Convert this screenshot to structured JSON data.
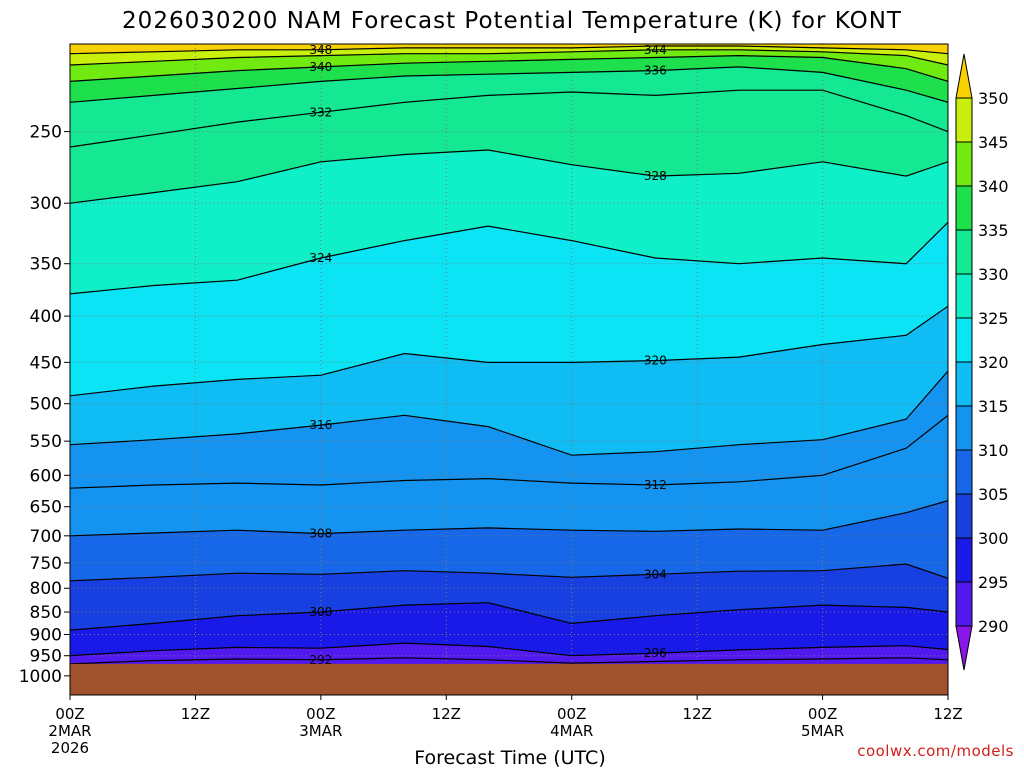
{
  "chart_data": {
    "type": "heatmap",
    "title": "2026030200 NAM Forecast Potential Temperature (K) for KONT",
    "xlabel": "Forecast Time (UTC)",
    "ylabel": "",
    "credit": "coolwx.com/models",
    "units": "K",
    "x_ticks": [
      {
        "hour": 0,
        "label": "00Z",
        "date": "2MAR",
        "year": "2026"
      },
      {
        "hour": 12,
        "label": "12Z",
        "date": "",
        "year": ""
      },
      {
        "hour": 24,
        "label": "00Z",
        "date": "3MAR",
        "year": ""
      },
      {
        "hour": 36,
        "label": "12Z",
        "date": "",
        "year": ""
      },
      {
        "hour": 48,
        "label": "00Z",
        "date": "4MAR",
        "year": ""
      },
      {
        "hour": 60,
        "label": "12Z",
        "date": "",
        "year": ""
      },
      {
        "hour": 72,
        "label": "00Z",
        "date": "5MAR",
        "year": ""
      },
      {
        "hour": 84,
        "label": "12Z",
        "date": "",
        "year": ""
      }
    ],
    "xlim": [
      0,
      84
    ],
    "y_ticks": [
      250,
      300,
      350,
      400,
      450,
      500,
      550,
      600,
      650,
      700,
      750,
      800,
      850,
      900,
      950,
      1000
    ],
    "ylim": [
      1050,
      200
    ],
    "y_scale": "log-pressure (hPa)",
    "grid": true,
    "colorbar": {
      "levels": [
        290,
        295,
        300,
        305,
        310,
        315,
        320,
        325,
        330,
        335,
        340,
        345,
        350
      ],
      "colors": [
        "#8a16e8",
        "#5218f0",
        "#1a1ae8",
        "#1840e0",
        "#1668e8",
        "#1494f0",
        "#10bcf4",
        "#0ae4f4",
        "#10f0c8",
        "#14e892",
        "#1ee04c",
        "#70ea10",
        "#c8f00c",
        "#f8f800",
        "#f8d200"
      ],
      "placement": "right"
    },
    "ground_pressure": 970,
    "isentropes": [
      {
        "theta": 292,
        "points": [
          [
            0,
            970
          ],
          [
            8,
            962
          ],
          [
            16,
            958
          ],
          [
            24,
            960
          ],
          [
            32,
            955
          ],
          [
            40,
            960
          ],
          [
            48,
            968
          ],
          [
            56,
            964
          ],
          [
            64,
            960
          ],
          [
            72,
            958
          ],
          [
            80,
            955
          ],
          [
            84,
            960
          ]
        ]
      },
      {
        "theta": 296,
        "points": [
          [
            0,
            950
          ],
          [
            8,
            938
          ],
          [
            16,
            930
          ],
          [
            24,
            932
          ],
          [
            32,
            920
          ],
          [
            40,
            928
          ],
          [
            48,
            950
          ],
          [
            56,
            944
          ],
          [
            64,
            936
          ],
          [
            72,
            930
          ],
          [
            80,
            926
          ],
          [
            84,
            935
          ]
        ]
      },
      {
        "theta": 300,
        "points": [
          [
            0,
            890
          ],
          [
            8,
            875
          ],
          [
            16,
            858
          ],
          [
            24,
            850
          ],
          [
            32,
            835
          ],
          [
            40,
            830
          ],
          [
            48,
            875
          ],
          [
            56,
            858
          ],
          [
            64,
            845
          ],
          [
            72,
            835
          ],
          [
            80,
            840
          ],
          [
            84,
            850
          ]
        ]
      },
      {
        "theta": 304,
        "points": [
          [
            0,
            785
          ],
          [
            8,
            778
          ],
          [
            16,
            770
          ],
          [
            24,
            772
          ],
          [
            32,
            765
          ],
          [
            40,
            770
          ],
          [
            48,
            778
          ],
          [
            56,
            772
          ],
          [
            64,
            766
          ],
          [
            72,
            765
          ],
          [
            80,
            752
          ],
          [
            84,
            780
          ]
        ]
      },
      {
        "theta": 308,
        "points": [
          [
            0,
            700
          ],
          [
            8,
            695
          ],
          [
            16,
            690
          ],
          [
            24,
            696
          ],
          [
            32,
            690
          ],
          [
            40,
            686
          ],
          [
            48,
            690
          ],
          [
            56,
            692
          ],
          [
            64,
            688
          ],
          [
            72,
            690
          ],
          [
            80,
            660
          ],
          [
            84,
            640
          ]
        ]
      },
      {
        "theta": 312,
        "points": [
          [
            0,
            620
          ],
          [
            8,
            615
          ],
          [
            16,
            612
          ],
          [
            24,
            615
          ],
          [
            32,
            608
          ],
          [
            40,
            605
          ],
          [
            48,
            612
          ],
          [
            56,
            615
          ],
          [
            64,
            610
          ],
          [
            72,
            600
          ],
          [
            80,
            560
          ],
          [
            84,
            515
          ]
        ]
      },
      {
        "theta": 316,
        "points": [
          [
            0,
            555
          ],
          [
            8,
            548
          ],
          [
            16,
            540
          ],
          [
            24,
            528
          ],
          [
            32,
            515
          ],
          [
            40,
            530
          ],
          [
            48,
            570
          ],
          [
            56,
            565
          ],
          [
            64,
            555
          ],
          [
            72,
            548
          ],
          [
            80,
            520
          ],
          [
            84,
            460
          ]
        ]
      },
      {
        "theta": 320,
        "points": [
          [
            0,
            490
          ],
          [
            8,
            478
          ],
          [
            16,
            470
          ],
          [
            24,
            465
          ],
          [
            32,
            440
          ],
          [
            40,
            450
          ],
          [
            48,
            450
          ],
          [
            56,
            448
          ],
          [
            64,
            444
          ],
          [
            72,
            430
          ],
          [
            80,
            420
          ],
          [
            84,
            390
          ]
        ]
      },
      {
        "theta": 324,
        "points": [
          [
            0,
            378
          ],
          [
            8,
            370
          ],
          [
            16,
            365
          ],
          [
            24,
            345
          ],
          [
            32,
            330
          ],
          [
            40,
            318
          ],
          [
            48,
            330
          ],
          [
            56,
            345
          ],
          [
            64,
            350
          ],
          [
            72,
            345
          ],
          [
            80,
            350
          ],
          [
            84,
            315
          ]
        ]
      },
      {
        "theta": 328,
        "points": [
          [
            0,
            300
          ],
          [
            8,
            292
          ],
          [
            16,
            284
          ],
          [
            24,
            270
          ],
          [
            32,
            265
          ],
          [
            40,
            262
          ],
          [
            48,
            272
          ],
          [
            56,
            280
          ],
          [
            64,
            278
          ],
          [
            72,
            270
          ],
          [
            80,
            280
          ],
          [
            84,
            270
          ]
        ]
      },
      {
        "theta": 332,
        "points": [
          [
            0,
            260
          ],
          [
            8,
            252
          ],
          [
            16,
            244
          ],
          [
            24,
            238
          ],
          [
            32,
            232
          ],
          [
            40,
            228
          ],
          [
            48,
            226
          ],
          [
            56,
            228
          ],
          [
            64,
            225
          ],
          [
            72,
            225
          ],
          [
            80,
            240
          ],
          [
            84,
            250
          ]
        ]
      },
      {
        "theta": 336,
        "points": [
          [
            0,
            232
          ],
          [
            8,
            228
          ],
          [
            16,
            224
          ],
          [
            24,
            220
          ],
          [
            32,
            217
          ],
          [
            40,
            216
          ],
          [
            48,
            215
          ],
          [
            56,
            214
          ],
          [
            64,
            212
          ],
          [
            72,
            215
          ],
          [
            80,
            225
          ],
          [
            84,
            232
          ]
        ]
      },
      {
        "theta": 340,
        "points": [
          [
            0,
            220
          ],
          [
            8,
            217
          ],
          [
            16,
            214
          ],
          [
            24,
            212
          ],
          [
            32,
            210
          ],
          [
            40,
            209
          ],
          [
            48,
            208
          ],
          [
            56,
            207
          ],
          [
            64,
            206
          ],
          [
            72,
            207
          ],
          [
            80,
            213
          ],
          [
            84,
            220
          ]
        ]
      },
      {
        "theta": 344,
        "points": [
          [
            0,
            211
          ],
          [
            8,
            209
          ],
          [
            16,
            207
          ],
          [
            24,
            206
          ],
          [
            32,
            205
          ],
          [
            40,
            205
          ],
          [
            48,
            204
          ],
          [
            56,
            203
          ],
          [
            64,
            203
          ],
          [
            72,
            204
          ],
          [
            80,
            206
          ],
          [
            84,
            211
          ]
        ]
      },
      {
        "theta": 348,
        "points": [
          [
            0,
            205
          ],
          [
            8,
            204
          ],
          [
            16,
            203
          ],
          [
            24,
            203
          ],
          [
            32,
            202
          ],
          [
            40,
            202
          ],
          [
            48,
            202
          ],
          [
            56,
            201
          ],
          [
            64,
            201
          ],
          [
            72,
            202
          ],
          [
            80,
            203
          ],
          [
            84,
            205
          ]
        ]
      }
    ]
  }
}
